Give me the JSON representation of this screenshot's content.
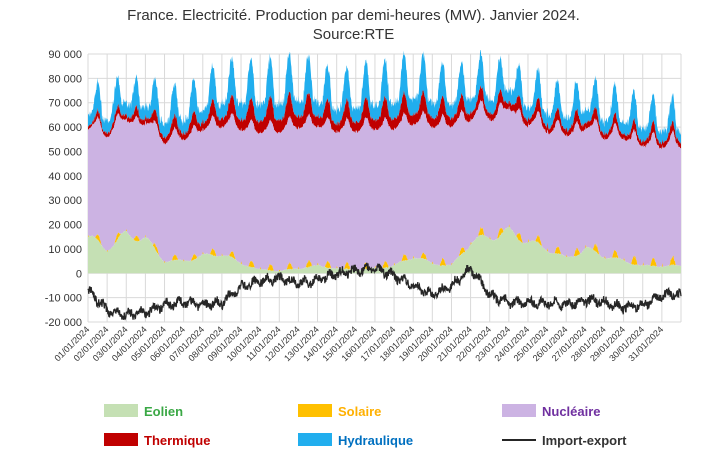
{
  "chart_data": {
    "type": "area",
    "title": "France. Electricité. Production par demi-heures (MW). Janvier 2024.",
    "subtitle": "Source:RTE",
    "xlabel": "",
    "ylabel": "",
    "ylim": [
      -20000,
      90000
    ],
    "yticks": [
      90000,
      80000,
      70000,
      60000,
      50000,
      40000,
      30000,
      20000,
      10000,
      0,
      -10000,
      -20000
    ],
    "ytick_labels": [
      "90 000",
      "80 000",
      "70 000",
      "60 000",
      "50 000",
      "40 000",
      "30 000",
      "20 000",
      "10 000",
      "0",
      "-10 000",
      "-20 000"
    ],
    "x": [
      "01/01/2024",
      "02/01/2024",
      "03/01/2024",
      "04/01/2024",
      "05/01/2024",
      "06/01/2024",
      "07/01/2024",
      "08/01/2024",
      "09/01/2024",
      "10/01/2024",
      "11/01/2024",
      "12/01/2024",
      "13/01/2024",
      "14/01/2024",
      "15/01/2024",
      "16/01/2024",
      "17/01/2024",
      "18/01/2024",
      "19/01/2024",
      "20/01/2024",
      "21/01/2024",
      "22/01/2024",
      "23/01/2024",
      "24/01/2024",
      "25/01/2024",
      "26/01/2024",
      "27/01/2024",
      "28/01/2024",
      "29/01/2024",
      "30/01/2024",
      "31/01/2024"
    ],
    "grid": true,
    "legend_position": "bottom",
    "stacked": true,
    "series": [
      {
        "name": "Eolien",
        "color": "#c5e0b4",
        "label_color": "#3aa845",
        "values": [
          15000,
          10000,
          16000,
          14000,
          5000,
          5000,
          7000,
          8000,
          4000,
          1500,
          1000,
          2000,
          3000,
          2000,
          1500,
          2000,
          3000,
          7000,
          4000,
          3000,
          13000,
          15000,
          17000,
          13000,
          10000,
          6000,
          10000,
          7000,
          5000,
          3000,
          3000
        ]
      },
      {
        "name": "Solaire",
        "color": "#ffc000",
        "label_color": "#ffb000",
        "values": [
          2500,
          2500,
          2500,
          2500,
          2500,
          2500,
          3000,
          3000,
          3000,
          3000,
          3000,
          3000,
          3000,
          3000,
          3000,
          3000,
          3000,
          3000,
          3000,
          3000,
          3500,
          3500,
          3500,
          3500,
          3500,
          3500,
          3500,
          3500,
          4000,
          4000,
          4000
        ]
      },
      {
        "name": "Nucléaire",
        "color": "#ccb3e3",
        "label_color": "#7030a0",
        "values": [
          45000,
          48000,
          47000,
          48000,
          50000,
          51000,
          52000,
          54000,
          56000,
          57000,
          58000,
          59000,
          58000,
          57000,
          58000,
          58000,
          57000,
          56000,
          57000,
          58000,
          52000,
          50000,
          50000,
          49000,
          50000,
          51000,
          50000,
          50000,
          51000,
          50000,
          50000
        ]
      },
      {
        "name": "Thermique",
        "color": "#c00000",
        "label_color": "#c00000",
        "values": [
          2000,
          2500,
          3000,
          3500,
          4000,
          4500,
          5000,
          6000,
          7000,
          8000,
          8500,
          8000,
          7000,
          6000,
          6500,
          7000,
          7000,
          7000,
          6500,
          6000,
          5000,
          4500,
          4500,
          4500,
          4000,
          4000,
          4000,
          3500,
          3500,
          3500,
          3500
        ]
      },
      {
        "name": "Hydraulique",
        "color": "#21aeee",
        "label_color": "#0070c0",
        "values": [
          8000,
          9000,
          9000,
          9000,
          10000,
          10000,
          10000,
          11000,
          12000,
          12000,
          12000,
          12000,
          11000,
          10000,
          11000,
          11000,
          12000,
          12000,
          11000,
          10000,
          10000,
          10000,
          10000,
          9000,
          9000,
          9000,
          9000,
          9000,
          9000,
          9000,
          8000
        ]
      },
      {
        "name": "Import-export",
        "color": "#262626",
        "label_color": "#333333",
        "values": [
          -7000,
          -15000,
          -17000,
          -16000,
          -13000,
          -12000,
          -13000,
          -12000,
          -6000,
          -3000,
          -2000,
          -4000,
          -3000,
          0,
          1000,
          2000,
          -1000,
          -5000,
          -9000,
          -5000,
          2000,
          -9000,
          -12000,
          -12000,
          -12000,
          -13000,
          -11000,
          -12000,
          -14000,
          -13000,
          -9000
        ]
      }
    ]
  }
}
